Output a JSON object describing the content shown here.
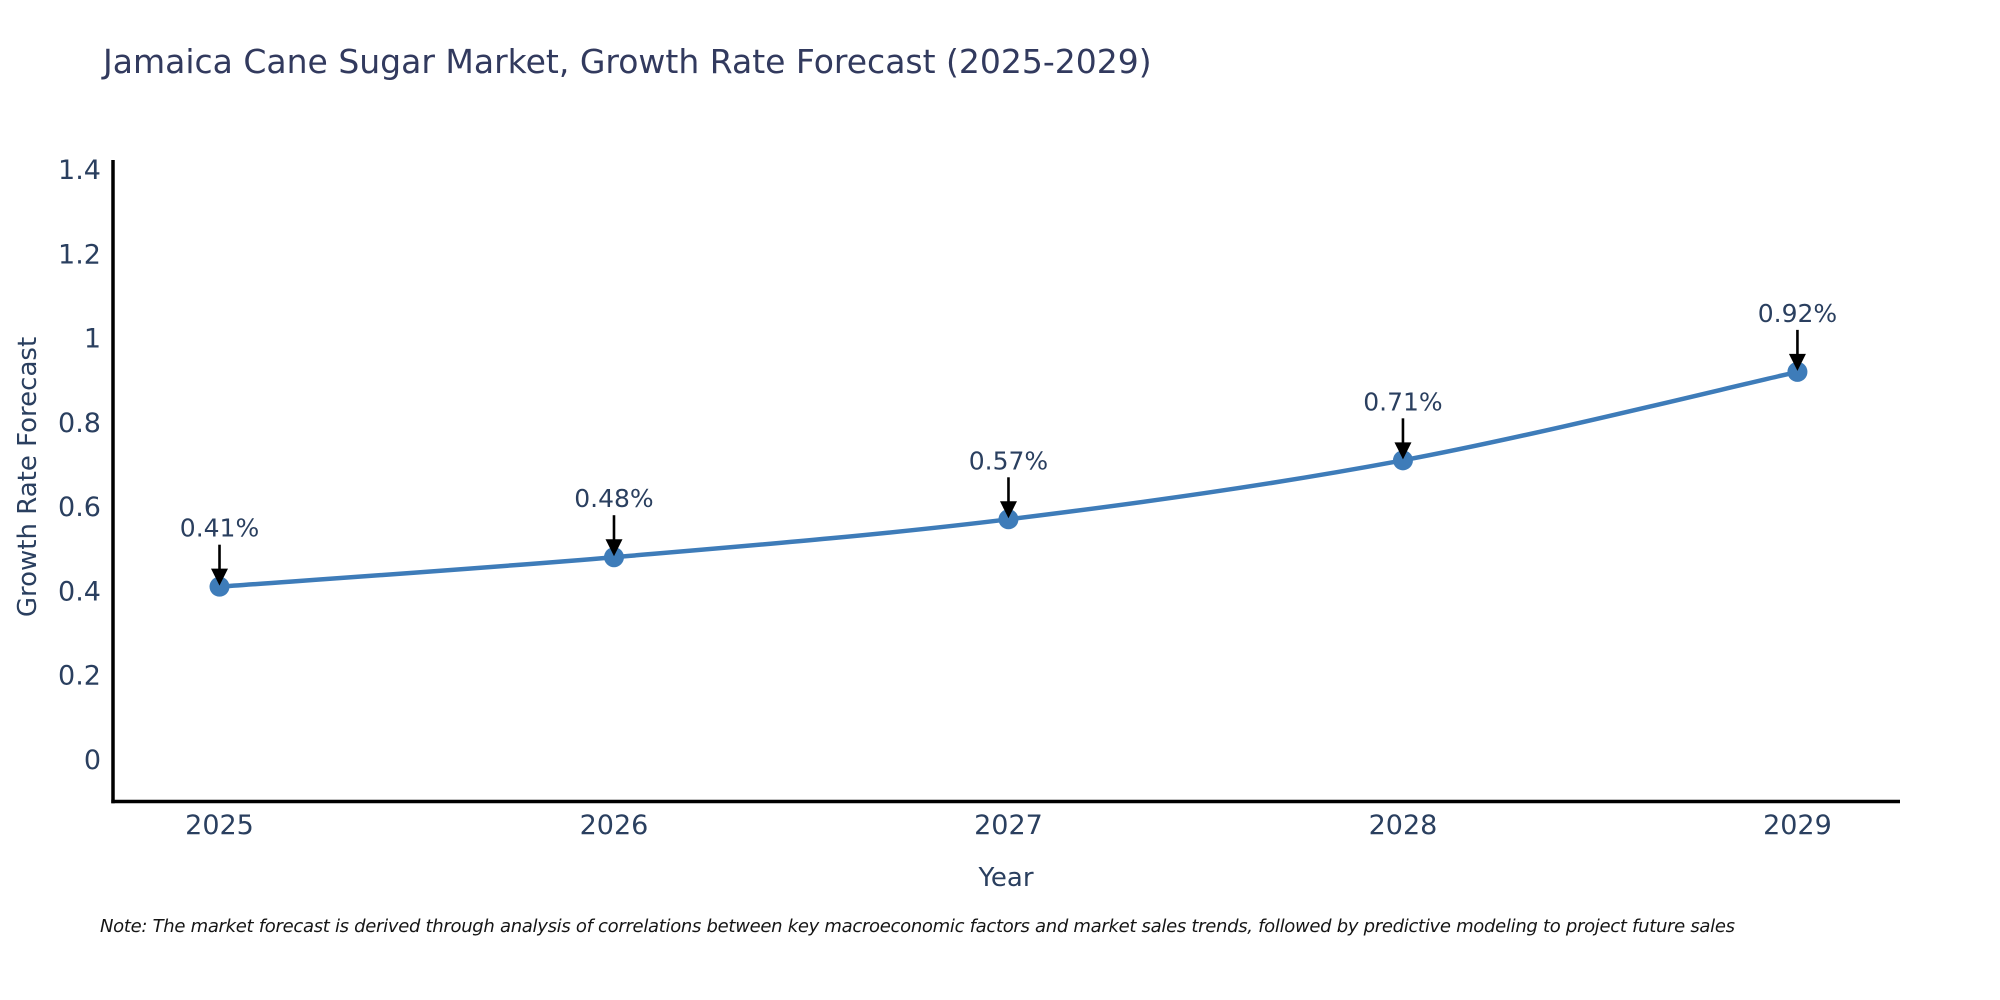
{
  "chart_data": {
    "type": "line",
    "title": "Jamaica Cane Sugar Market, Growth Rate Forecast (2025-2029)",
    "xlabel": "Year",
    "ylabel": "Growth Rate Forecast",
    "x": [
      2025,
      2026,
      2027,
      2028,
      2029
    ],
    "values": [
      0.41,
      0.48,
      0.57,
      0.71,
      0.92
    ],
    "point_labels": [
      "0.41%",
      "0.48%",
      "0.57%",
      "0.71%",
      "0.92%"
    ],
    "xtick_labels": [
      "2025",
      "2026",
      "2027",
      "2028",
      "2029"
    ],
    "yticks": [
      0,
      0.2,
      0.4,
      0.6,
      0.8,
      1,
      1.2,
      1.4
    ],
    "ytick_labels": [
      "0",
      "0.2",
      "0.4",
      "0.6",
      "0.8",
      "1",
      "1.2",
      "1.4"
    ],
    "xlim": [
      2024.73,
      2029.26
    ],
    "ylim": [
      -0.1,
      1.423
    ],
    "grid": false,
    "legend": "none",
    "line_color": "#3e7cb9",
    "marker_color": "#3e7cb9",
    "arrow_color": "#000000",
    "axis_color": "#000000",
    "label_color": "#2a3f5f",
    "title_color": "#323a5e"
  },
  "note": "Note: The market forecast is derived through analysis of correlations between key macroeconomic factors and market sales trends, followed by predictive modeling to project future sales"
}
